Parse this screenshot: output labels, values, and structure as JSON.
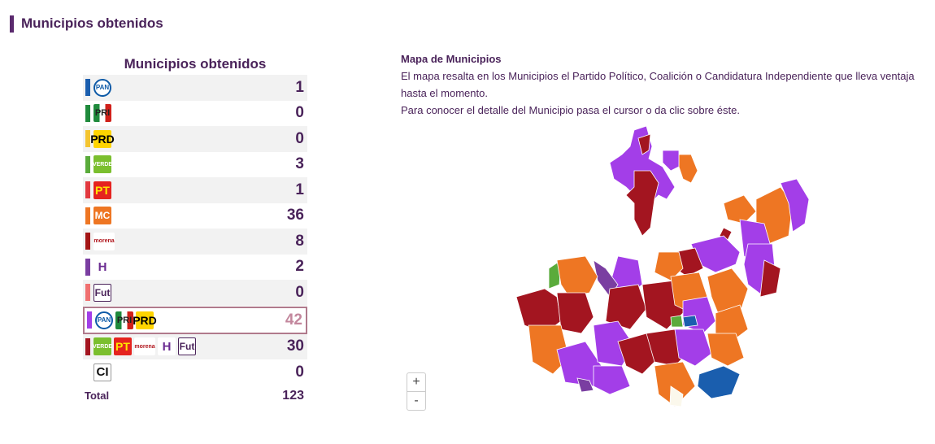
{
  "section": {
    "title": "Municipios obtenidos"
  },
  "table": {
    "title": "Municipios obtenidos",
    "rows": [
      {
        "color": "#1a5eae",
        "logos": [
          "PAN"
        ],
        "count": "1"
      },
      {
        "color": "#1f8a3c",
        "logos": [
          "PRI"
        ],
        "count": "0"
      },
      {
        "color": "#f4c430",
        "logos": [
          "PRD"
        ],
        "count": "0"
      },
      {
        "color": "#5aab3b",
        "logos": [
          "VERDE"
        ],
        "count": "3"
      },
      {
        "color": "#e2393f",
        "logos": [
          "PT"
        ],
        "count": "1"
      },
      {
        "color": "#ee7623",
        "logos": [
          "MC"
        ],
        "count": "36"
      },
      {
        "color": "#a31515",
        "logos": [
          "morena"
        ],
        "count": "8"
      },
      {
        "color": "#7a3ea1",
        "logos": [
          "H"
        ],
        "count": "2"
      },
      {
        "color": "#f07070",
        "logos": [
          "Futuro"
        ],
        "count": "0"
      },
      {
        "color": "#a33ee8",
        "logos": [
          "PAN",
          "PRI",
          "PRD"
        ],
        "count": "42"
      },
      {
        "color": "#a31520",
        "logos": [
          "VERDE",
          "PT",
          "morena",
          "H",
          "Futuro"
        ],
        "count": "30"
      },
      {
        "color": "#ffffff",
        "logos": [
          "CI"
        ],
        "count": "0"
      }
    ],
    "total_label": "Total",
    "total_count": "123"
  },
  "info": {
    "heading": "Mapa de Municipios",
    "line1": "El mapa resalta en los Municipios el Partido Político, Coalición o Candidatura Independiente que lleva ventaja hasta el momento.",
    "line2": "Para conocer el detalle del Municipio pasa el cursor o da clic sobre éste."
  },
  "map": {
    "zoom_in": "+",
    "zoom_out": "-",
    "colors": {
      "coalition_pan_pri_prd": "#a33ee8",
      "coalition_morena": "#a31520",
      "mc": "#ee7623",
      "pan": "#1a5eae",
      "verde": "#5aab3b",
      "hagamos": "#7a3ea1",
      "ci": "#fbf8ec"
    }
  },
  "logo_text": {
    "PAN": "PAN",
    "PRI": "PRI",
    "PRD": "PRD",
    "VERDE": "VERDE",
    "PT": "PT",
    "MC": "MC",
    "morena": "morena",
    "H": "H",
    "Futuro": "Fut",
    "CI": "CI"
  }
}
